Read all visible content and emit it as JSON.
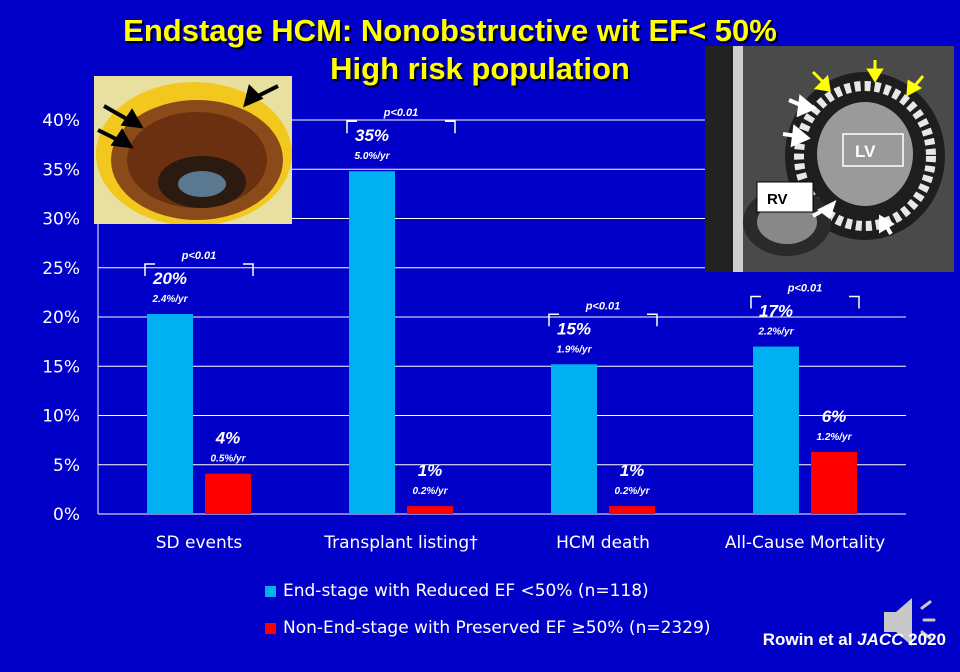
{
  "title": {
    "line1": "Endstage HCM: Nonobstructive wit EF< 50%",
    "line2": "High risk population"
  },
  "colors": {
    "background": "#0000c8",
    "title": "#ffff00",
    "series_reduced": "#00b0f0",
    "series_preserved": "#ff0000"
  },
  "chart_data": {
    "type": "bar",
    "categories": [
      "SD events",
      "Transplant listing†",
      "HCM death",
      "All-Cause Mortality"
    ],
    "ylim": [
      0,
      40
    ],
    "yticks": [
      "0%",
      "5%",
      "10%",
      "15%",
      "20%",
      "25%",
      "30%",
      "35%",
      "40%"
    ],
    "grid": true,
    "series": [
      {
        "name": "End-stage with Reduced EF <50% (n=118)",
        "values": [
          20.3,
          34.8,
          15.2,
          17.0
        ],
        "labels": [
          "20%",
          "35%",
          "15%",
          "17%"
        ],
        "rates": [
          "2.4%/yr",
          "5.0%/yr",
          "1.9%/yr",
          "2.2%/yr"
        ]
      },
      {
        "name": "Non-End-stage with Preserved EF ≥50% (n=2329)",
        "values": [
          4.1,
          0.8,
          0.8,
          6.3
        ],
        "labels": [
          "4%",
          "1%",
          "1%",
          "6%"
        ],
        "rates": [
          "0.5%/yr",
          "0.2%/yr",
          "0.2%/yr",
          "1.2%/yr"
        ]
      }
    ],
    "pvalues": [
      "p<0.01",
      "p<0.01",
      "p<0.01",
      "p<0.01"
    ]
  },
  "images": {
    "pathology_specimen": "gross heart cross-section with black arrows",
    "mri_image": "cardiac MRI with arrows",
    "mri_label_lv": "LV",
    "mri_label_rv": "RV"
  },
  "credit": {
    "authors": "Rowin et al ",
    "journal": "JACC",
    "year": " 2020"
  },
  "speaker_icon": "speaker-icon"
}
